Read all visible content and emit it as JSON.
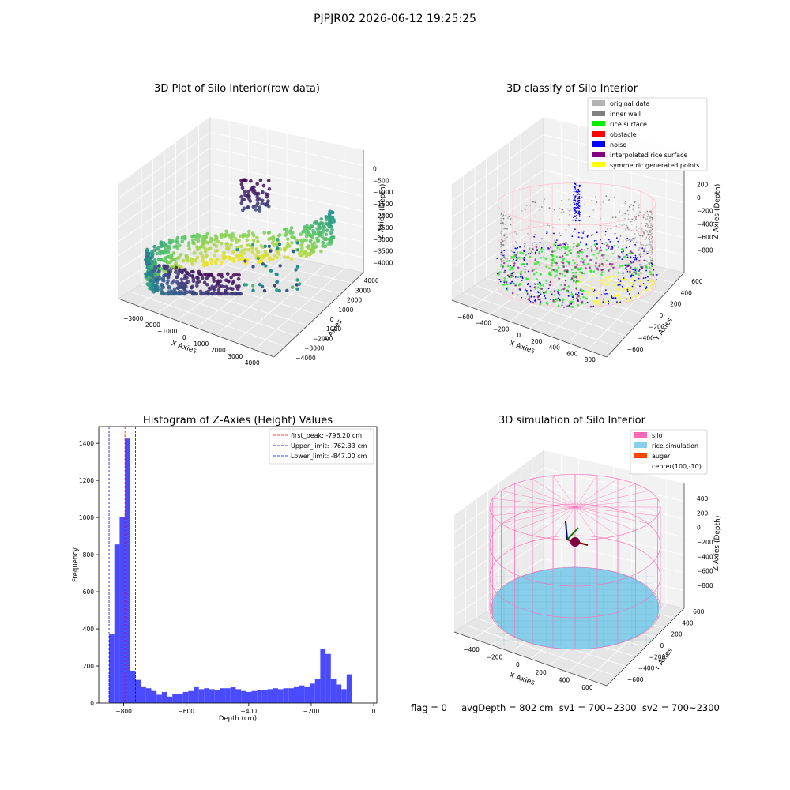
{
  "figure": {
    "suptitle": "PJPJR02 2026-06-12 19:25:25",
    "footer": "flag = 0     avgDepth = 802 cm  sv1 = 700~2300  sv2 = 700~2300"
  },
  "colors": {
    "original": "#b3b3b3",
    "inner_wall": "#808080",
    "rice_surface": "#00ee00",
    "obstacle": "#ff0000",
    "noise": "#0000ff",
    "interpolated": "#800080",
    "symmetric": "#ffff00",
    "silo": "#ff69b4",
    "rice_sim": "#87ceeb",
    "auger": "#ff4500",
    "hist_bar": "#4a4aff"
  },
  "chart_data": [
    {
      "type": "scatter",
      "title": "3D Plot of Silo Interior(row data)",
      "xlabel": "X Axies",
      "ylabel": "Y Axies",
      "zlabel": "Z Axies (Depth)",
      "xticks": [
        "−3000",
        "−2000",
        "−1000",
        "0",
        "1000",
        "2000",
        "3000",
        "4000"
      ],
      "yticks": [
        "−4000",
        "−3000",
        "−2000",
        "−1000",
        "0",
        "1000",
        "2000",
        "3000",
        "4000"
      ],
      "zticks": [
        "−4000",
        "−3500",
        "−3000",
        "−2500",
        "−2000",
        "−1500",
        "−1000",
        "−500",
        "0"
      ],
      "xlim": [
        -3400,
        4600
      ],
      "ylim": [
        -4200,
        4200
      ],
      "zlim": [
        -4100,
        0
      ],
      "colormap": "viridis",
      "grid": true
    },
    {
      "type": "scatter",
      "title": "3D classify of Silo Interior",
      "xlabel": "X Axies",
      "ylabel": "Y Axies",
      "zlabel": "Z Axies (Depth)",
      "xticks": [
        "−600",
        "−400",
        "−200",
        "0",
        "200",
        "400",
        "600",
        "800"
      ],
      "yticks": [
        "−600",
        "−400",
        "−200",
        "0",
        "200",
        "400",
        "600"
      ],
      "zticks": [
        "−800",
        "−600",
        "−400",
        "−200",
        "0",
        "200"
      ],
      "xlim": [
        -650,
        850
      ],
      "ylim": [
        -700,
        700
      ],
      "zlim": [
        -950,
        300
      ],
      "legend_position": "top-right",
      "legend": [
        {
          "label": "original data",
          "color": "#b3b3b3"
        },
        {
          "label": "inner wall",
          "color": "#808080"
        },
        {
          "label": "rice surface",
          "color": "#00ee00"
        },
        {
          "label": "obstacle",
          "color": "#ff0000"
        },
        {
          "label": "noise",
          "color": "#0000ff"
        },
        {
          "label": "interpolated rice surface",
          "color": "#800080"
        },
        {
          "label": "symmetric generated points",
          "color": "#ffff00"
        }
      ],
      "grid": true
    },
    {
      "type": "bar",
      "title": "Histogram of Z-Axies (Height) Values",
      "xlabel": "Depth (cm)",
      "ylabel": "Frequency",
      "xlim": [
        -880,
        10
      ],
      "ylim": [
        0,
        1490
      ],
      "xticks": [
        -800,
        -600,
        -400,
        -200,
        0
      ],
      "yticks": [
        0,
        200,
        400,
        600,
        800,
        1000,
        1200,
        1400
      ],
      "bin_start": -847,
      "bin_width": 16.9,
      "values": [
        370,
        855,
        1005,
        1425,
        175,
        125,
        90,
        80,
        65,
        45,
        60,
        35,
        50,
        50,
        60,
        65,
        90,
        75,
        80,
        75,
        70,
        80,
        80,
        85,
        75,
        65,
        60,
        65,
        70,
        70,
        75,
        80,
        75,
        80,
        80,
        90,
        95,
        90,
        105,
        130,
        290,
        265,
        130,
        100,
        75,
        155
      ],
      "vlines": [
        {
          "label": "first_peak: -796.20 cm",
          "x": -796.2,
          "color": "#ff0000"
        },
        {
          "label": "Upper_limit: -762.33 cm",
          "x": -762.33,
          "color": "#0000ff"
        },
        {
          "label": "Lower_limit: -847.00 cm",
          "x": -847.0,
          "color": "#0000ff"
        }
      ],
      "legend_position": "top-right",
      "grid": false
    },
    {
      "type": "scatter",
      "title": "3D simulation of Silo Interior",
      "xlabel": "X Axies",
      "ylabel": "Y Axies",
      "zlabel": "Z Axies (Depth)",
      "xticks": [
        "−400",
        "−200",
        "0",
        "200",
        "400",
        "600"
      ],
      "yticks": [
        "−600",
        "−400",
        "−200",
        "0",
        "200",
        "400",
        "600"
      ],
      "zticks": [
        "−800",
        "−600",
        "−400",
        "−200",
        "0",
        "200",
        "400"
      ],
      "xlim": [
        -500,
        750
      ],
      "ylim": [
        -700,
        700
      ],
      "zlim": [
        -900,
        450
      ],
      "legend_position": "top-right",
      "legend": [
        {
          "label": "silo",
          "color": "#ff69b4"
        },
        {
          "label": "rice simulation",
          "color": "#87ceeb"
        },
        {
          "label": "auger",
          "color": "#ff4500"
        },
        {
          "label": "center(100,-10)",
          "color": ""
        }
      ],
      "grid": true
    }
  ]
}
